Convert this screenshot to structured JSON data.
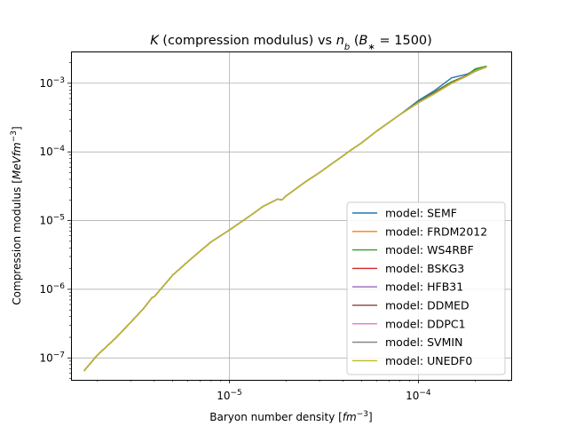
{
  "chart_data": {
    "type": "line",
    "title": "K (compression modulus) vs n_b (B_* = 1500)",
    "title_parts": {
      "k": "K",
      "middle": " (compression modulus) vs ",
      "n": "n",
      "n_sub": "b",
      "open": " (",
      "b": "B",
      "b_sub": "∗",
      "close": " = 1500)"
    },
    "xlabel": "Baryon number density [fm⁻³]",
    "xlabel_parts": {
      "text": "Baryon number density [",
      "unit": "fm",
      "exp": "−3",
      "close": "]"
    },
    "ylabel": "Compression modulus [MeVfm⁻³]",
    "ylabel_parts": {
      "text": "Compression modulus [",
      "unit": "MeVfm",
      "exp": "−3",
      "close": "]"
    },
    "x_scale": "log",
    "y_scale": "log",
    "xlim": [
      1.45e-06,
      0.00031
    ],
    "ylim": [
      4.8e-08,
      0.0029
    ],
    "x_ticks": [
      {
        "value": 1e-05,
        "base": "10",
        "exp": "−5"
      },
      {
        "value": 0.0001,
        "base": "10",
        "exp": "−4"
      }
    ],
    "y_ticks": [
      {
        "value": 1e-07,
        "base": "10",
        "exp": "−7"
      },
      {
        "value": 1e-06,
        "base": "10",
        "exp": "−6"
      },
      {
        "value": 1e-05,
        "base": "10",
        "exp": "−5"
      },
      {
        "value": 0.0001,
        "base": "10",
        "exp": "−4"
      },
      {
        "value": 0.001,
        "base": "10",
        "exp": "−3"
      }
    ],
    "grid": true,
    "legend_position": "lower right",
    "x": [
      1.7e-06,
      2e-06,
      2.5e-06,
      3e-06,
      3.5e-06,
      3.9e-06,
      4e-06,
      5e-06,
      6e-06,
      7e-06,
      8e-06,
      1e-05,
      1.3e-05,
      1.5e-05,
      1.8e-05,
      1.9e-05,
      2e-05,
      2.5e-05,
      3e-05,
      3.5e-05,
      4e-05,
      4.3e-05,
      5e-05,
      6e-05,
      7e-05,
      8e-05,
      0.0001,
      0.00012,
      0.00015,
      0.00018,
      0.0002,
      0.00023
    ],
    "series": [
      {
        "name": "model: SEMF",
        "color": "#1f77b4",
        "y": [
          6.5e-08,
          1.1e-07,
          1.95e-07,
          3.3e-07,
          5.2e-07,
          7.6e-07,
          7.8e-07,
          1.6e-06,
          2.5e-06,
          3.6e-06,
          4.9e-06,
          7.3e-06,
          1.2e-05,
          1.6e-05,
          2.05e-05,
          2e-05,
          2.3e-05,
          3.6e-05,
          5e-05,
          6.8e-05,
          8.8e-05,
          0.000102,
          0.000135,
          0.0002,
          0.00027,
          0.00035,
          0.00056,
          0.00076,
          0.0012,
          0.00135,
          0.00155,
          0.00175
        ]
      },
      {
        "name": "model: FRDM2012",
        "color": "#ff7f0e",
        "y": [
          6.5e-08,
          1.1e-07,
          1.95e-07,
          3.3e-07,
          5.2e-07,
          7.6e-07,
          7.8e-07,
          1.6e-06,
          2.5e-06,
          3.6e-06,
          4.9e-06,
          7.3e-06,
          1.2e-05,
          1.6e-05,
          2.05e-05,
          2e-05,
          2.3e-05,
          3.6e-05,
          5e-05,
          6.8e-05,
          8.8e-05,
          0.000102,
          0.000135,
          0.0002,
          0.00027,
          0.00035,
          0.00053,
          0.0007,
          0.001,
          0.0013,
          0.0015,
          0.00175
        ]
      },
      {
        "name": "model: WS4RBF",
        "color": "#2ca02c",
        "y": [
          6.5e-08,
          1.1e-07,
          1.95e-07,
          3.3e-07,
          5.2e-07,
          7.6e-07,
          7.8e-07,
          1.6e-06,
          2.5e-06,
          3.6e-06,
          4.9e-06,
          7.3e-06,
          1.2e-05,
          1.6e-05,
          2.05e-05,
          2e-05,
          2.3e-05,
          3.6e-05,
          5e-05,
          6.8e-05,
          8.8e-05,
          0.000102,
          0.000135,
          0.0002,
          0.00027,
          0.00035,
          0.00054,
          0.00073,
          0.00105,
          0.0013,
          0.00162,
          0.00178
        ]
      },
      {
        "name": "model: BSKG3",
        "color": "#d62728",
        "y": [
          6.5e-08,
          1.1e-07,
          1.95e-07,
          3.3e-07,
          5.2e-07,
          7.6e-07,
          7.8e-07,
          1.6e-06,
          2.5e-06,
          3.6e-06,
          4.9e-06,
          7.3e-06,
          1.2e-05,
          1.6e-05,
          2.05e-05,
          2e-05,
          2.3e-05,
          3.6e-05,
          5e-05,
          6.8e-05,
          8.8e-05,
          0.000102,
          0.000135,
          0.0002,
          0.00027,
          0.00035,
          0.00053,
          0.00071,
          0.00102,
          0.0013,
          0.00152,
          0.00175
        ]
      },
      {
        "name": "model: HFB31",
        "color": "#9467bd",
        "y": [
          6.5e-08,
          1.1e-07,
          1.95e-07,
          3.3e-07,
          5.2e-07,
          7.6e-07,
          7.8e-07,
          1.6e-06,
          2.5e-06,
          3.6e-06,
          4.9e-06,
          7.3e-06,
          1.2e-05,
          1.6e-05,
          2.05e-05,
          2e-05,
          2.3e-05,
          3.6e-05,
          5e-05,
          6.8e-05,
          8.8e-05,
          0.000102,
          0.000135,
          0.0002,
          0.00027,
          0.00035,
          0.00053,
          0.0007,
          0.001,
          0.00128,
          0.0015,
          0.00174
        ]
      },
      {
        "name": "model: DDMED",
        "color": "#8c564b",
        "y": [
          6.5e-08,
          1.1e-07,
          1.95e-07,
          3.3e-07,
          5.2e-07,
          7.6e-07,
          7.8e-07,
          1.6e-06,
          2.5e-06,
          3.6e-06,
          4.9e-06,
          7.3e-06,
          1.2e-05,
          1.6e-05,
          2.05e-05,
          2e-05,
          2.3e-05,
          3.6e-05,
          5e-05,
          6.8e-05,
          8.8e-05,
          0.000102,
          0.000135,
          0.0002,
          0.00027,
          0.00035,
          0.00052,
          0.00069,
          0.001,
          0.00127,
          0.0015,
          0.00173
        ]
      },
      {
        "name": "model: DDPC1",
        "color": "#e377c2",
        "y": [
          6.5e-08,
          1.1e-07,
          1.95e-07,
          3.3e-07,
          5.2e-07,
          7.6e-07,
          7.8e-07,
          1.6e-06,
          2.5e-06,
          3.6e-06,
          4.9e-06,
          7.3e-06,
          1.2e-05,
          1.6e-05,
          2.05e-05,
          2e-05,
          2.3e-05,
          3.6e-05,
          5e-05,
          6.8e-05,
          8.8e-05,
          0.000102,
          0.000135,
          0.0002,
          0.00027,
          0.00035,
          0.00052,
          0.00069,
          0.001,
          0.00127,
          0.0015,
          0.00173
        ]
      },
      {
        "name": "model: SVMIN",
        "color": "#7f7f7f",
        "y": [
          6.5e-08,
          1.1e-07,
          1.95e-07,
          3.3e-07,
          5.2e-07,
          7.6e-07,
          7.8e-07,
          1.6e-06,
          2.5e-06,
          3.6e-06,
          4.9e-06,
          7.3e-06,
          1.2e-05,
          1.6e-05,
          2.05e-05,
          2e-05,
          2.3e-05,
          3.6e-05,
          5e-05,
          6.8e-05,
          8.8e-05,
          0.000102,
          0.000135,
          0.0002,
          0.00027,
          0.00035,
          0.00052,
          0.00069,
          0.001,
          0.00127,
          0.0015,
          0.00173
        ]
      },
      {
        "name": "model: UNEDF0",
        "color": "#bcbd22",
        "y": [
          6.5e-08,
          1.1e-07,
          1.95e-07,
          3.3e-07,
          5.2e-07,
          7.6e-07,
          7.8e-07,
          1.6e-06,
          2.5e-06,
          3.6e-06,
          4.9e-06,
          7.3e-06,
          1.2e-05,
          1.6e-05,
          2.05e-05,
          2e-05,
          2.3e-05,
          3.6e-05,
          5e-05,
          6.8e-05,
          8.8e-05,
          0.000102,
          0.000135,
          0.0002,
          0.00027,
          0.00035,
          0.00052,
          0.00069,
          0.001,
          0.00128,
          0.00152,
          0.00174
        ]
      }
    ]
  }
}
